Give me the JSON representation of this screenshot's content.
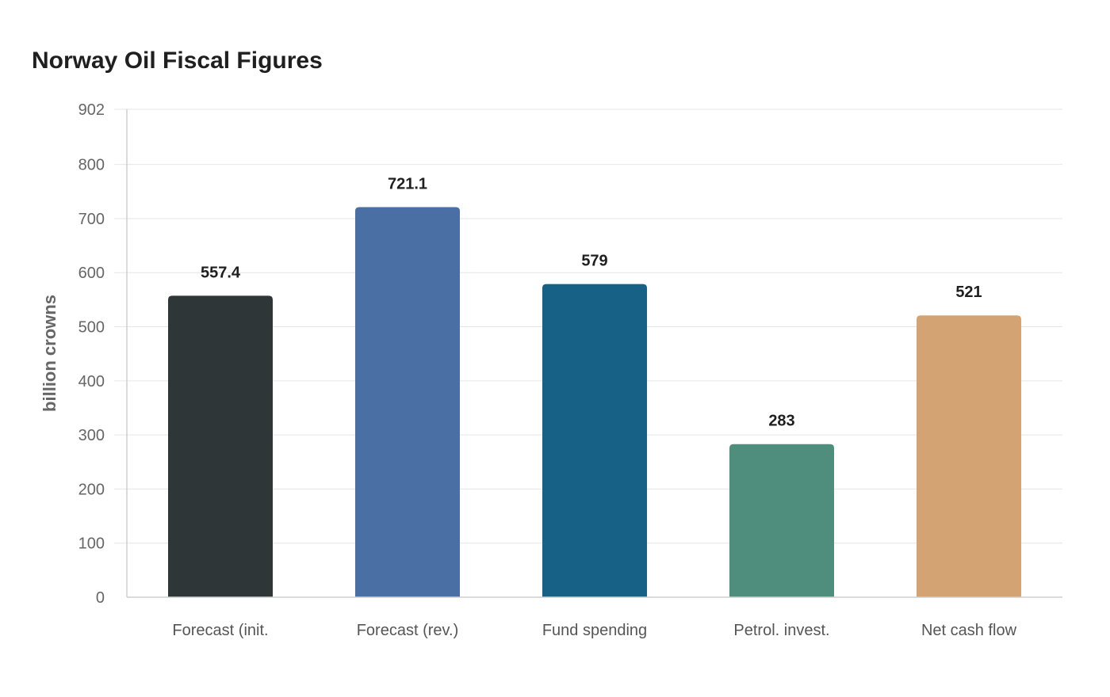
{
  "chart_data": {
    "type": "bar",
    "title": "Norway Oil Fiscal Figures",
    "xlabel": "",
    "ylabel": "billion crowns",
    "categories": [
      "Forecast (init.",
      "Forecast (rev.)",
      "Fund spending",
      "Petrol. invest.",
      "Net cash flow"
    ],
    "values": [
      557.4,
      721.1,
      579,
      283,
      521
    ],
    "value_labels": [
      "557.4",
      "721.1",
      "579",
      "283",
      "521"
    ],
    "colors": [
      "#2e3638",
      "#4a6fa5",
      "#186186",
      "#4f8e7c",
      "#d3a373"
    ],
    "ylim": [
      0,
      902
    ],
    "yticks": [
      0,
      100,
      200,
      300,
      400,
      500,
      600,
      700,
      800,
      902
    ],
    "grid": true,
    "legend": "none"
  }
}
